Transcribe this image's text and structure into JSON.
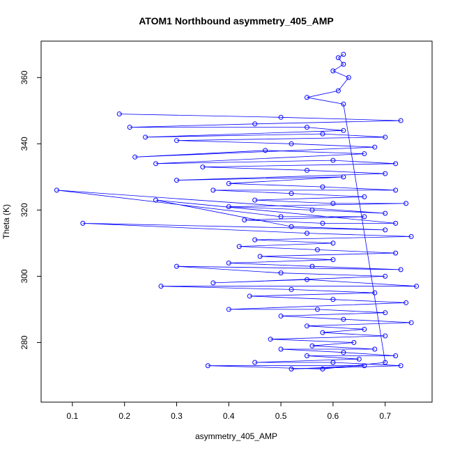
{
  "chart_data": {
    "type": "scatter",
    "title": "ATOM1 Northbound asymmetry_405_AMP",
    "xlabel": "asymmetry_405_AMP",
    "ylabel": "Theta (K)",
    "xlim": [
      0.04,
      0.79
    ],
    "ylim": [
      262,
      371
    ],
    "xticks": [
      0.1,
      0.2,
      0.3,
      0.4,
      0.5,
      0.6,
      0.7
    ],
    "yticks": [
      280,
      300,
      320,
      340,
      360
    ],
    "point_style": "open-circle",
    "connected": true,
    "grid": false,
    "legend": "none",
    "series_color": "#0000ff",
    "series": [
      {
        "x": [
          0.19,
          0.5,
          0.73,
          0.45,
          0.21,
          0.55,
          0.62,
          0.24,
          0.58,
          0.7,
          0.3,
          0.52,
          0.68,
          0.22,
          0.47,
          0.66,
          0.26,
          0.6,
          0.72,
          0.35,
          0.55,
          0.7,
          0.3,
          0.62,
          0.4,
          0.58,
          0.72,
          0.37,
          0.52,
          0.66,
          0.45,
          0.6,
          0.74,
          0.4,
          0.56,
          0.7,
          0.07,
          0.5,
          0.66,
          0.43,
          0.58,
          0.72,
          0.26,
          0.52,
          0.7,
          0.12,
          0.55,
          0.75,
          0.45,
          0.6,
          0.42,
          0.57,
          0.72,
          0.46,
          0.6,
          0.4,
          0.56,
          0.73,
          0.3,
          0.5,
          0.7,
          0.37,
          0.55,
          0.76,
          0.27,
          0.52,
          0.68,
          0.44,
          0.6,
          0.74,
          0.4,
          0.57,
          0.7,
          0.5,
          0.62,
          0.75,
          0.55,
          0.66,
          0.58,
          0.7,
          0.48,
          0.64,
          0.56,
          0.68,
          0.5,
          0.62,
          0.72,
          0.55,
          0.65,
          0.45,
          0.6,
          0.73,
          0.52,
          0.66,
          0.36,
          0.58,
          0.7,
          0.62,
          0.55,
          0.61,
          0.63,
          0.6,
          0.62,
          0.61,
          0.62
        ],
        "y": [
          349,
          348,
          347,
          346,
          345,
          345,
          344,
          342,
          343,
          342,
          341,
          340,
          339,
          336,
          338,
          337,
          334,
          335,
          334,
          333,
          332,
          331,
          329,
          330,
          328,
          327,
          326,
          326,
          325,
          324,
          323,
          322,
          322,
          321,
          320,
          319,
          326,
          318,
          318,
          317,
          316,
          316,
          323,
          315,
          314,
          316,
          313,
          312,
          311,
          310,
          309,
          308,
          307,
          306,
          305,
          304,
          303,
          302,
          303,
          301,
          300,
          298,
          299,
          297,
          297,
          296,
          295,
          294,
          293,
          292,
          290,
          290,
          289,
          288,
          287,
          286,
          285,
          284,
          283,
          282,
          281,
          280,
          279,
          278,
          278,
          277,
          276,
          276,
          275,
          274,
          274,
          273,
          272,
          273,
          273,
          272,
          274,
          352,
          354,
          356,
          360,
          362,
          364,
          366,
          367
        ]
      }
    ]
  }
}
